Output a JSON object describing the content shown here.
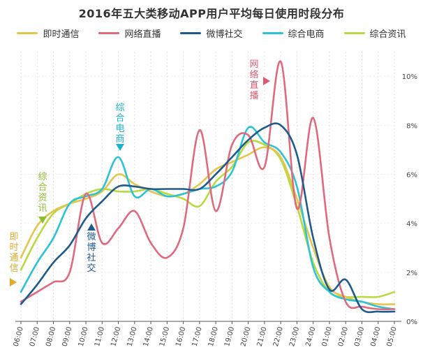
{
  "chart_data": {
    "type": "line",
    "title": "2016年五大类移动APP用户平均每日使用时段分布",
    "x": [
      "06:00",
      "07:00",
      "08:00",
      "09:00",
      "10:00",
      "11:00",
      "12:00",
      "13:00",
      "14:00",
      "15:00",
      "16:00",
      "17:00",
      "18:00",
      "19:00",
      "20:00",
      "21:00",
      "22:00",
      "23:00",
      "24:00",
      "01:00",
      "02:00",
      "03:00",
      "04:00",
      "05:00"
    ],
    "yticks": [
      "0%",
      "2%",
      "4%",
      "6%",
      "8%",
      "10%"
    ],
    "ylim": [
      0,
      11
    ],
    "grid": true,
    "legend_position": "top",
    "series": [
      {
        "name": "即时通信",
        "color": "#E3C64B",
        "values": [
          2.6,
          3.9,
          4.5,
          4.8,
          5.0,
          5.3,
          6.0,
          5.6,
          5.3,
          5.1,
          5.2,
          5.6,
          6.2,
          6.5,
          6.8,
          7.1,
          6.7,
          5.0,
          3.0,
          1.4,
          1.0,
          0.8,
          0.7,
          0.7
        ]
      },
      {
        "name": "网络直播",
        "color": "#E0697E",
        "values": [
          0.8,
          1.2,
          1.6,
          2.0,
          5.2,
          3.2,
          3.8,
          4.5,
          3.2,
          2.6,
          3.8,
          7.8,
          4.5,
          7.2,
          7.6,
          6.3,
          10.6,
          4.6,
          8.3,
          3.4,
          0.8,
          0.6,
          0.5,
          0.5
        ]
      },
      {
        "name": "微博社交",
        "color": "#1E5A8C",
        "values": [
          0.7,
          1.5,
          2.4,
          3.1,
          4.2,
          4.9,
          5.5,
          5.5,
          5.4,
          5.4,
          5.4,
          5.4,
          6.0,
          6.7,
          7.4,
          7.9,
          8.0,
          6.8,
          3.4,
          1.3,
          1.7,
          0.5,
          0.4,
          0.4
        ]
      },
      {
        "name": "综合电商",
        "color": "#2CC3D6",
        "values": [
          1.2,
          2.4,
          3.4,
          4.8,
          5.1,
          5.4,
          6.7,
          5.1,
          5.4,
          5.1,
          5.2,
          5.4,
          5.5,
          6.1,
          7.9,
          7.3,
          6.9,
          5.5,
          2.2,
          1.2,
          0.9,
          0.8,
          0.6,
          0.5
        ]
      },
      {
        "name": "综合资讯",
        "color": "#B8DA3E",
        "values": [
          2.1,
          3.4,
          4.4,
          4.8,
          5.2,
          5.4,
          5.3,
          5.3,
          5.4,
          5.2,
          5.0,
          4.7,
          5.7,
          6.3,
          7.3,
          7.2,
          6.6,
          4.7,
          2.4,
          1.2,
          1.0,
          1.0,
          1.0,
          1.2
        ]
      }
    ],
    "annotations": [
      {
        "series": 0,
        "chars": [
          "即",
          "时",
          "通",
          "信"
        ],
        "arrow": "right",
        "color": "#E3A92B"
      },
      {
        "series": 4,
        "chars": [
          "综",
          "合",
          "资",
          "讯"
        ],
        "arrow": "down",
        "color": "#8EBF2E"
      },
      {
        "series": 2,
        "chars": [
          "微",
          "博",
          "社",
          "交"
        ],
        "arrow": "up",
        "color": "#1E5A8C"
      },
      {
        "series": 3,
        "chars": [
          "综",
          "合",
          "电",
          "商"
        ],
        "arrow": "down",
        "color": "#19B4CF"
      },
      {
        "series": 1,
        "chars": [
          "网",
          "络",
          "直",
          "播"
        ],
        "arrow": "right",
        "color": "#DB5A72"
      }
    ]
  }
}
